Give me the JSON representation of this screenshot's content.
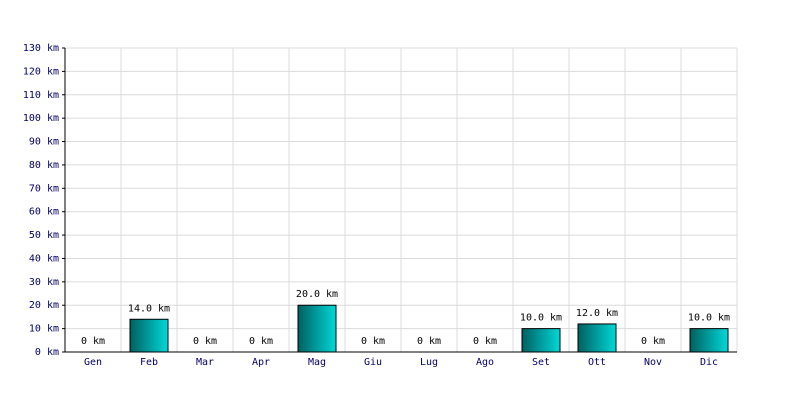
{
  "chart_data": {
    "type": "bar",
    "categories": [
      "Gen",
      "Feb",
      "Mar",
      "Apr",
      "Mag",
      "Giu",
      "Lug",
      "Ago",
      "Set",
      "Ott",
      "Nov",
      "Dic"
    ],
    "values": [
      0,
      14,
      0,
      0,
      20,
      0,
      0,
      0,
      10,
      12,
      0,
      10
    ],
    "value_labels": [
      "0 km",
      "14.0 km",
      "0 km",
      "0 km",
      "20.0 km",
      "0 km",
      "0 km",
      "0 km",
      "10.0 km",
      "12.0 km",
      "0 km",
      "10.0 km"
    ],
    "color": "#00d8d8",
    "ylim": [
      0,
      130
    ],
    "yticks": [
      {
        "value": 0,
        "label": "0 km"
      },
      {
        "value": 10,
        "label": "10 km"
      },
      {
        "value": 20,
        "label": "20 km"
      },
      {
        "value": 30,
        "label": "30 km"
      },
      {
        "value": 40,
        "label": "40 km"
      },
      {
        "value": 50,
        "label": "50 km"
      },
      {
        "value": 60,
        "label": "60 km"
      },
      {
        "value": 70,
        "label": "70 km"
      },
      {
        "value": 80,
        "label": "80 km"
      },
      {
        "value": 90,
        "label": "90 km"
      },
      {
        "value": 100,
        "label": "100 km"
      },
      {
        "value": 110,
        "label": "110 km"
      },
      {
        "value": 120,
        "label": "120 km"
      },
      {
        "value": 130,
        "label": "130 km"
      }
    ],
    "grid": true
  }
}
